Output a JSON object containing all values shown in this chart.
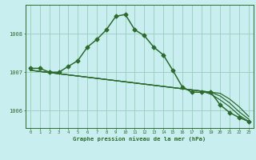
{
  "title": "Graphe pression niveau de la mer (hPa)",
  "background_color": "#c8eef0",
  "grid_color": "#99ccbb",
  "line_color": "#2d6b2d",
  "x_ticks": [
    0,
    1,
    2,
    3,
    4,
    5,
    6,
    7,
    8,
    9,
    10,
    11,
    12,
    13,
    14,
    15,
    16,
    17,
    18,
    19,
    20,
    21,
    22,
    23
  ],
  "y_ticks": [
    1006,
    1007,
    1008
  ],
  "ylim": [
    1005.55,
    1008.75
  ],
  "xlim": [
    -0.5,
    23.5
  ],
  "lines": [
    {
      "x": [
        0,
        1,
        2,
        3,
        4,
        5,
        6,
        7,
        8,
        9,
        10,
        11,
        12,
        13,
        14,
        15,
        16,
        17,
        18,
        19,
        20,
        21,
        22,
        23
      ],
      "y": [
        1007.05,
        1007.02,
        1006.99,
        1006.96,
        1006.93,
        1006.9,
        1006.87,
        1006.84,
        1006.81,
        1006.78,
        1006.75,
        1006.72,
        1006.69,
        1006.66,
        1006.63,
        1006.6,
        1006.57,
        1006.54,
        1006.51,
        1006.48,
        1006.45,
        1006.3,
        1006.1,
        1005.85
      ],
      "marker": null,
      "linewidth": 0.9
    },
    {
      "x": [
        0,
        1,
        2,
        3,
        4,
        5,
        6,
        7,
        8,
        9,
        10,
        11,
        12,
        13,
        14,
        15,
        16,
        17,
        18,
        19,
        20,
        21,
        22,
        23
      ],
      "y": [
        1007.05,
        1007.02,
        1006.99,
        1006.96,
        1006.93,
        1006.9,
        1006.87,
        1006.84,
        1006.81,
        1006.78,
        1006.75,
        1006.72,
        1006.69,
        1006.66,
        1006.63,
        1006.6,
        1006.57,
        1006.54,
        1006.51,
        1006.48,
        1006.38,
        1006.2,
        1005.97,
        1005.78
      ],
      "marker": null,
      "linewidth": 0.9
    },
    {
      "x": [
        0,
        1,
        2,
        3,
        4,
        5,
        6,
        7,
        8,
        9,
        10,
        11,
        12,
        13,
        14,
        15,
        16,
        17,
        18,
        19,
        20,
        21,
        22,
        23
      ],
      "y": [
        1007.05,
        1007.02,
        1006.99,
        1006.96,
        1006.93,
        1006.9,
        1006.87,
        1006.84,
        1006.81,
        1006.78,
        1006.75,
        1006.72,
        1006.69,
        1006.66,
        1006.63,
        1006.6,
        1006.57,
        1006.54,
        1006.51,
        1006.43,
        1006.28,
        1006.1,
        1005.88,
        1005.72
      ],
      "marker": null,
      "linewidth": 0.9
    },
    {
      "x": [
        0,
        1,
        2,
        3,
        4,
        5,
        6,
        7,
        8,
        9,
        10,
        11,
        12,
        13,
        14,
        15,
        16,
        17,
        18,
        19,
        20,
        21,
        22,
        23
      ],
      "y": [
        1007.1,
        1007.1,
        1007.0,
        1007.0,
        1007.15,
        1007.3,
        1007.65,
        1007.85,
        1008.1,
        1008.45,
        1008.5,
        1008.1,
        1007.95,
        1007.65,
        1007.45,
        1007.05,
        1006.62,
        1006.48,
        1006.48,
        1006.48,
        1006.15,
        1005.95,
        1005.82,
        1005.72
      ],
      "marker": "D",
      "markersize": 2.5,
      "linewidth": 1.1
    }
  ]
}
